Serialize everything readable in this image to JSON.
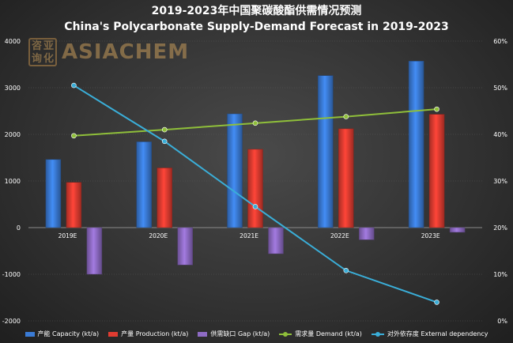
{
  "title": {
    "line1": "2019-2023年中国聚碳酸酯供需情况预测",
    "line2": "China's Polycarbonate Supply-Demand Forecast in 2019-2023"
  },
  "logo": {
    "seal_chars": [
      "咨",
      "亚",
      "询",
      "化"
    ],
    "text": "ASIACHEM",
    "color": "#c59a5a"
  },
  "chart_data": {
    "type": "bar",
    "categories": [
      "2019E",
      "2020E",
      "2021E",
      "2022E",
      "2023E"
    ],
    "y_left": {
      "min": -2000,
      "max": 4000,
      "step": 1000,
      "ticks": [
        "4000",
        "3000",
        "2000",
        "1000",
        "0",
        "-1000",
        "-2000"
      ]
    },
    "y_right": {
      "min": 0,
      "max": 60,
      "step": 10,
      "ticks": [
        "60%",
        "50%",
        "40%",
        "30%",
        "20%",
        "10%",
        "0%"
      ]
    },
    "series": [
      {
        "name": "产能 Capacity (kt/a)",
        "kind": "bar",
        "axis": "left",
        "color": "#3a7bd5",
        "values": [
          1460,
          1840,
          2440,
          3260,
          3570
        ]
      },
      {
        "name": "产量 Production (kt/a)",
        "kind": "bar",
        "axis": "left",
        "color": "#e03c31",
        "values": [
          970,
          1280,
          1680,
          2120,
          2430
        ]
      },
      {
        "name": "供需缺口 Gap (kt/a)",
        "kind": "bar",
        "axis": "left",
        "color": "#8e6bc4",
        "values": [
          -1000,
          -800,
          -560,
          -260,
          -100
        ]
      },
      {
        "name": "需求量 Demand (kt/a)",
        "kind": "line",
        "axis": "left",
        "color": "#8fbf3a",
        "values": [
          1970,
          2100,
          2240,
          2380,
          2540
        ]
      },
      {
        "name": "对外依存度 External dependency",
        "kind": "line",
        "axis": "right",
        "color": "#3aaed8",
        "values": [
          50.5,
          38.5,
          24.5,
          10.8,
          4.0
        ]
      }
    ],
    "grid": true,
    "legend_position": "bottom"
  }
}
